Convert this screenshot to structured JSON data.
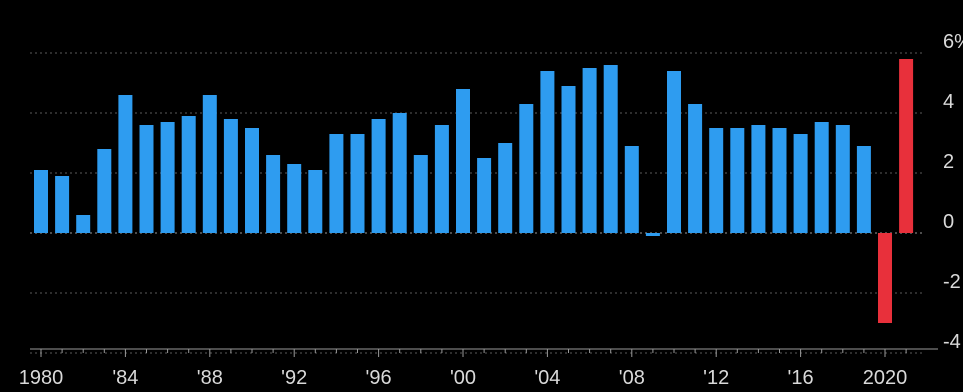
{
  "chart_data": {
    "type": "bar",
    "title": "",
    "xlabel": "",
    "ylabel": "",
    "ylim": [
      -4.5,
      6
    ],
    "grid": true,
    "x_tick_labels": [
      {
        "year": 1980,
        "label": "1980"
      },
      {
        "year": 1984,
        "label": "'84"
      },
      {
        "year": 1988,
        "label": "'88"
      },
      {
        "year": 1992,
        "label": "'92"
      },
      {
        "year": 1996,
        "label": "'96"
      },
      {
        "year": 2000,
        "label": "'00"
      },
      {
        "year": 2004,
        "label": "'04"
      },
      {
        "year": 2008,
        "label": "'08"
      },
      {
        "year": 2012,
        "label": "'12"
      },
      {
        "year": 2016,
        "label": "'16"
      },
      {
        "year": 2020,
        "label": "2020"
      }
    ],
    "y_ticks": [
      {
        "value": 6,
        "label": "6%"
      },
      {
        "value": 4,
        "label": "4"
      },
      {
        "value": 2,
        "label": "2"
      },
      {
        "value": 0,
        "label": "0"
      },
      {
        "value": -2,
        "label": "-2"
      },
      {
        "value": -4,
        "label": "-4"
      }
    ],
    "colors": {
      "historical": "#2e9cf0",
      "highlight": "#e8303b",
      "background": "#000000"
    },
    "series": [
      {
        "x": [
          1980,
          1981,
          1982,
          1983,
          1984,
          1985,
          1986,
          1987,
          1988,
          1989,
          1990,
          1991,
          1992,
          1993,
          1994,
          1995,
          1996,
          1997,
          1998,
          1999,
          2000,
          2001,
          2002,
          2003,
          2004,
          2005,
          2006,
          2007,
          2008,
          2009,
          2010,
          2011,
          2012,
          2013,
          2014,
          2015,
          2016,
          2017,
          2018,
          2019,
          2020,
          2021
        ],
        "values": [
          2.1,
          1.9,
          0.6,
          2.8,
          4.6,
          3.6,
          3.7,
          3.9,
          4.6,
          3.8,
          3.5,
          2.6,
          2.3,
          2.1,
          3.3,
          3.3,
          3.8,
          4.0,
          2.6,
          3.6,
          4.8,
          2.5,
          3.0,
          4.3,
          5.4,
          4.9,
          5.5,
          5.6,
          2.9,
          -0.1,
          5.4,
          4.3,
          3.5,
          3.5,
          3.6,
          3.5,
          3.3,
          3.7,
          3.6,
          2.9,
          -3.0,
          5.8
        ],
        "highlight": [
          false,
          false,
          false,
          false,
          false,
          false,
          false,
          false,
          false,
          false,
          false,
          false,
          false,
          false,
          false,
          false,
          false,
          false,
          false,
          false,
          false,
          false,
          false,
          false,
          false,
          false,
          false,
          false,
          false,
          false,
          false,
          false,
          false,
          false,
          false,
          false,
          false,
          false,
          false,
          false,
          true,
          true
        ]
      }
    ]
  }
}
